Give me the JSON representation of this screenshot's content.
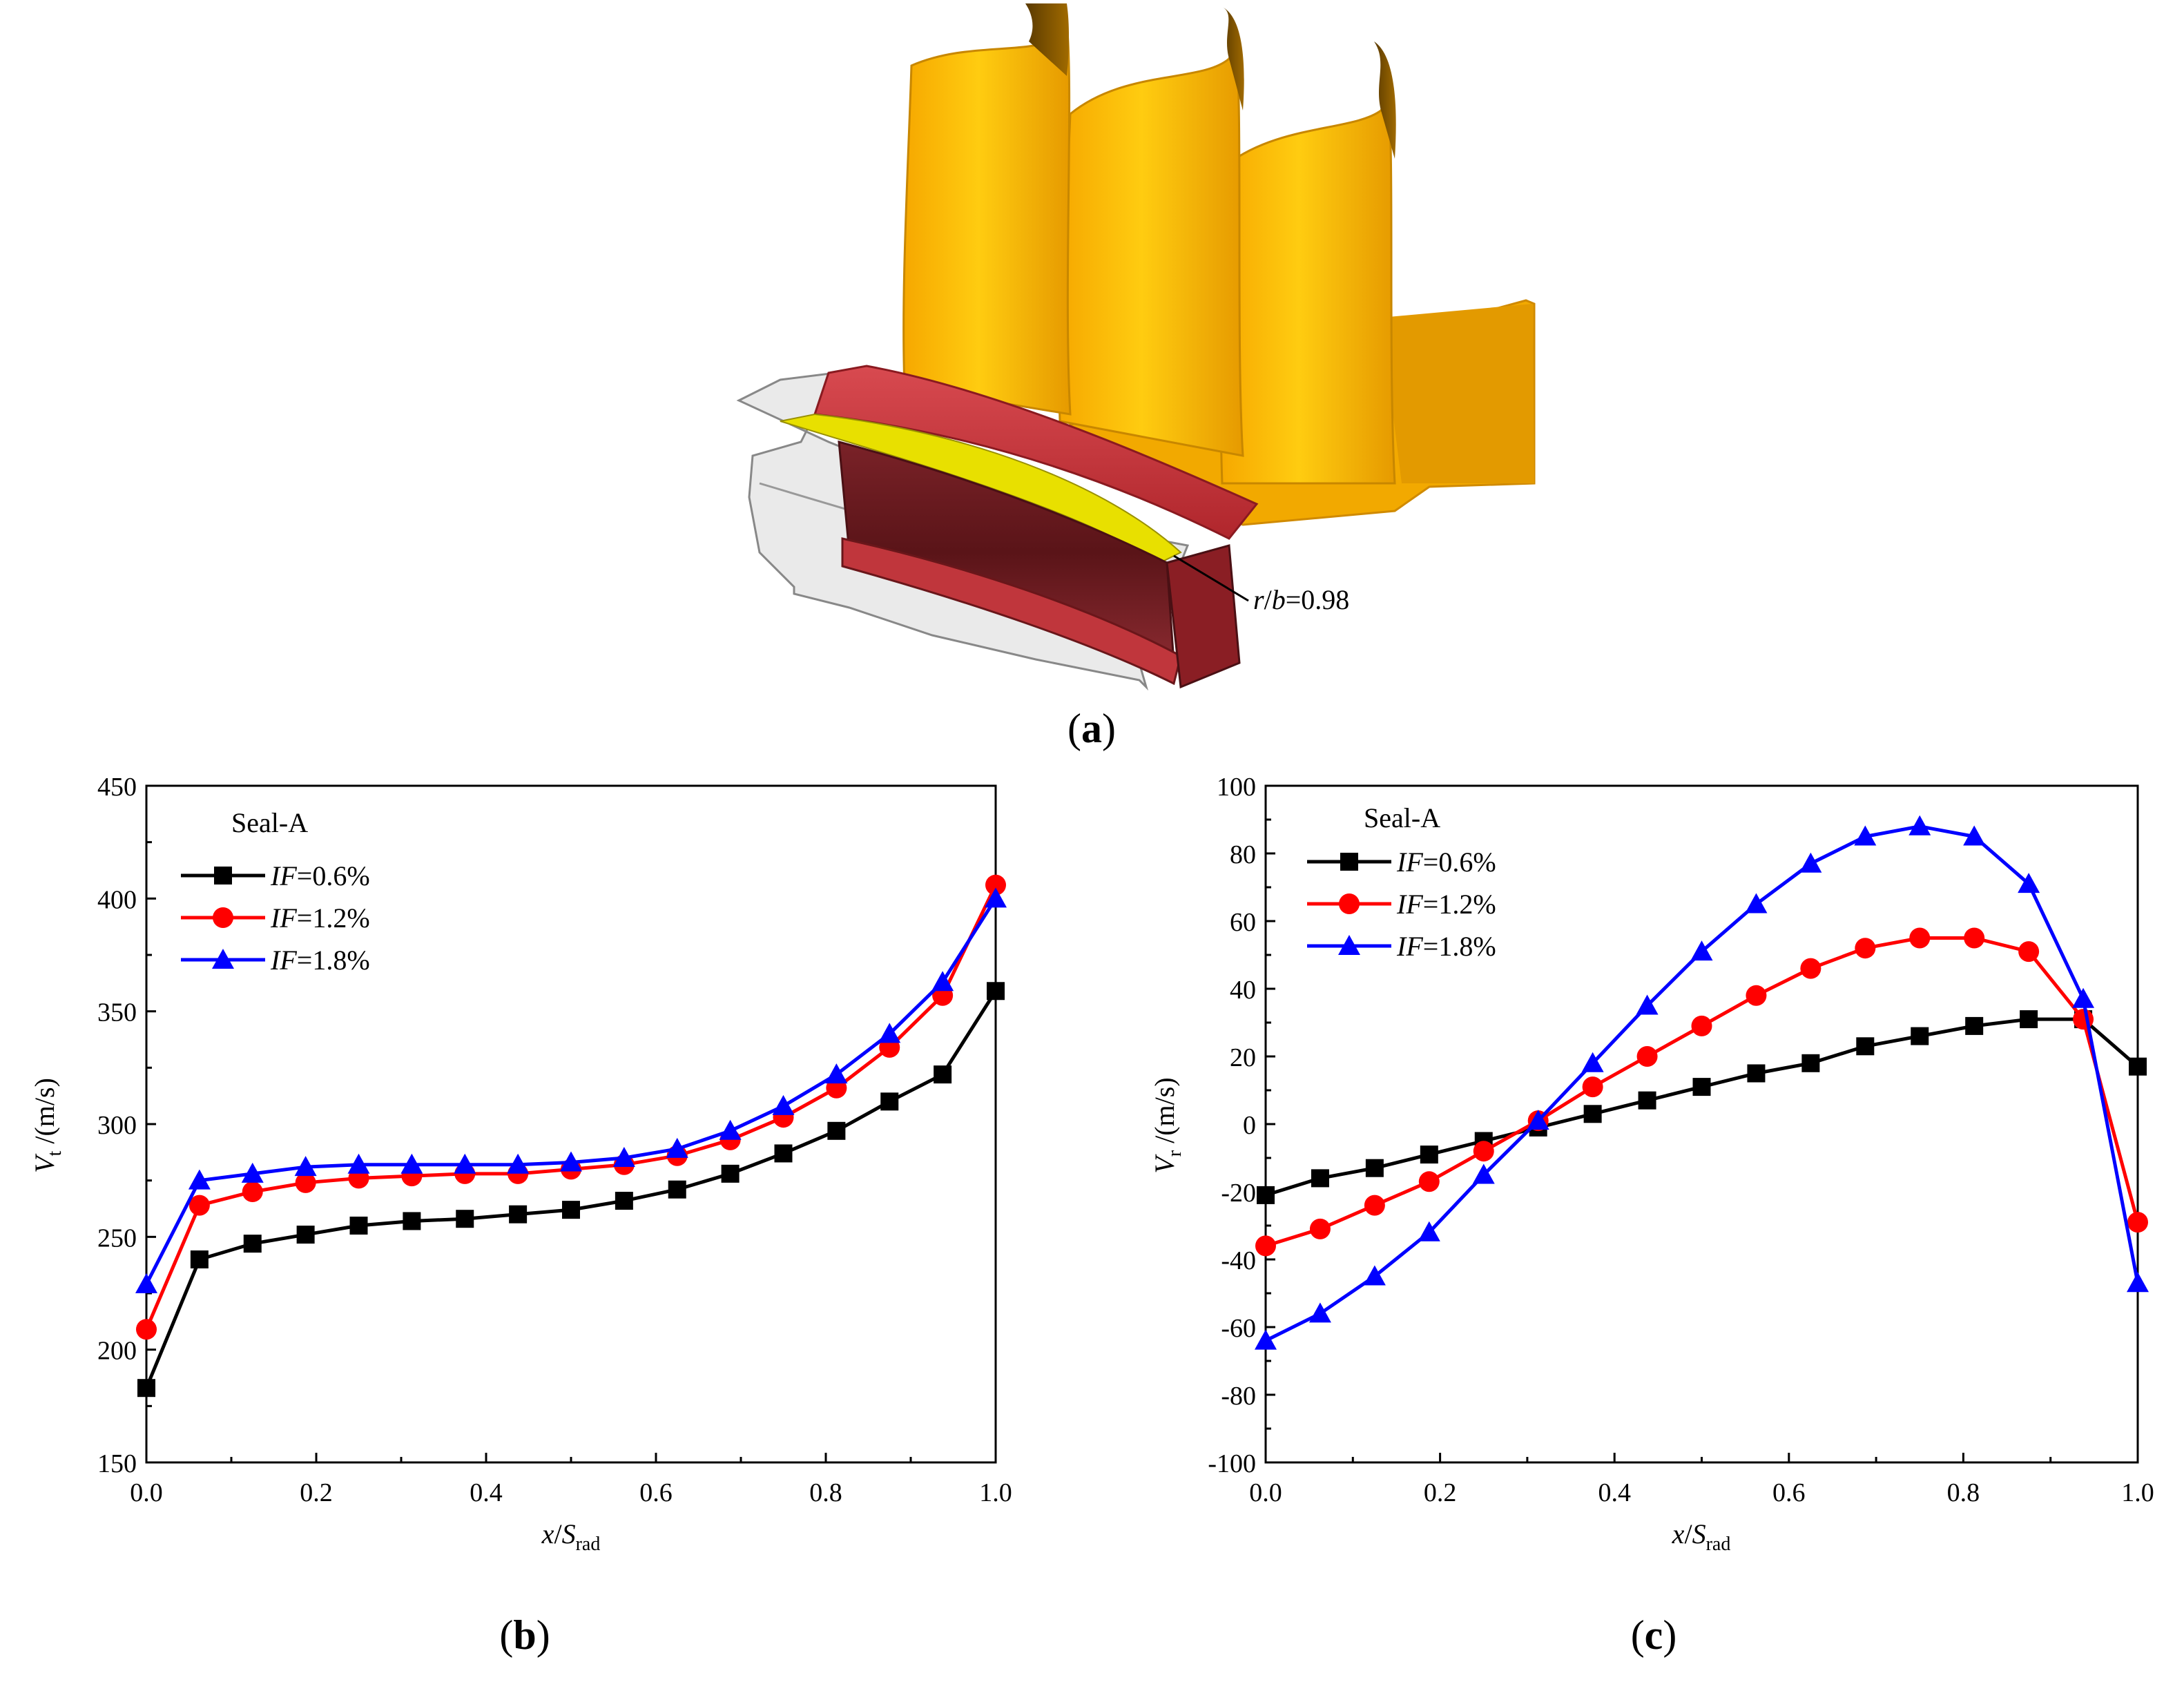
{
  "figure": {
    "panel_a": {
      "label_open": "(",
      "label_letter": "a",
      "label_close": ")",
      "annotation_r": "r",
      "annotation_b": "b",
      "annotation_value": "=0.98"
    },
    "panel_b": {
      "label_open": "(",
      "label_letter": "b",
      "label_close": ")"
    },
    "panel_c": {
      "label_open": "(",
      "label_letter": "c",
      "label_close": ")"
    }
  },
  "colors": {
    "black_series": "#000000",
    "red_series": "#ff0000",
    "blue_series": "#0000ff",
    "blade": "#ffbd00",
    "seal_red": "#c8373c",
    "seal_yellow": "#e8e000"
  },
  "chart_data": [
    {
      "id": "b",
      "type": "line",
      "legend_title": "Seal-A",
      "legend_position": "top-left",
      "xlabel_main": "x",
      "xlabel_sep": "/",
      "xlabel_var": "S",
      "xlabel_sub": "rad",
      "ylabel_main": "V",
      "ylabel_sub": "t",
      "ylabel_unit": " /(m/s)",
      "xlim": [
        0.0,
        1.0
      ],
      "ylim": [
        150,
        450
      ],
      "xticks": [
        "0.0",
        "0.2",
        "0.4",
        "0.6",
        "0.8",
        "1.0"
      ],
      "yticks": [
        "150",
        "200",
        "250",
        "300",
        "350",
        "400",
        "450"
      ],
      "x": [
        0,
        0.0625,
        0.125,
        0.1875,
        0.25,
        0.3125,
        0.375,
        0.4375,
        0.5,
        0.5625,
        0.625,
        0.6875,
        0.75,
        0.8125,
        0.875,
        0.9375,
        1.0
      ],
      "series": [
        {
          "name_var": "IF",
          "name_val": "=0.6%",
          "color": "#000000",
          "marker": "square",
          "values": [
            183,
            240,
            247,
            251,
            255,
            257,
            258,
            260,
            262,
            266,
            271,
            278,
            287,
            297,
            310,
            322,
            359
          ]
        },
        {
          "name_var": "IF",
          "name_val": "=1.2%",
          "color": "#ff0000",
          "marker": "circle",
          "values": [
            209,
            264,
            270,
            274,
            276,
            277,
            278,
            278,
            280,
            282,
            286,
            293,
            303,
            316,
            334,
            357,
            406
          ]
        },
        {
          "name_var": "IF",
          "name_val": "=1.8%",
          "color": "#0000ff",
          "marker": "triangle",
          "values": [
            229,
            275,
            278,
            281,
            282,
            282,
            282,
            282,
            283,
            285,
            289,
            297,
            308,
            322,
            340,
            363,
            400
          ]
        }
      ]
    },
    {
      "id": "c",
      "type": "line",
      "legend_title": "Seal-A",
      "legend_position": "top-left",
      "xlabel_main": "x",
      "xlabel_sep": "/",
      "xlabel_var": "S",
      "xlabel_sub": "rad",
      "ylabel_main": "V",
      "ylabel_sub": "r",
      "ylabel_unit": " /(m/s)",
      "xlim": [
        0.0,
        1.0
      ],
      "ylim": [
        -100,
        100
      ],
      "xticks": [
        "0.0",
        "0.2",
        "0.4",
        "0.6",
        "0.8",
        "1.0"
      ],
      "yticks": [
        "-100",
        "-80",
        "-60",
        "-40",
        "-20",
        "0",
        "20",
        "40",
        "60",
        "80",
        "100"
      ],
      "x": [
        0,
        0.0625,
        0.125,
        0.1875,
        0.25,
        0.3125,
        0.375,
        0.4375,
        0.5,
        0.5625,
        0.625,
        0.6875,
        0.75,
        0.8125,
        0.875,
        0.9375,
        1.0
      ],
      "series": [
        {
          "name_var": "IF",
          "name_val": "=0.6%",
          "color": "#000000",
          "marker": "square",
          "values": [
            -21,
            -16,
            -13,
            -9,
            -5,
            -1,
            3,
            7,
            11,
            15,
            18,
            23,
            26,
            29,
            31,
            31,
            17
          ]
        },
        {
          "name_var": "IF",
          "name_val": "=1.2%",
          "color": "#ff0000",
          "marker": "circle",
          "values": [
            -36,
            -31,
            -24,
            -17,
            -8,
            1,
            11,
            20,
            29,
            38,
            46,
            52,
            55,
            55,
            51,
            31,
            -29
          ]
        },
        {
          "name_var": "IF",
          "name_val": "=1.8%",
          "color": "#0000ff",
          "marker": "triangle",
          "values": [
            -64,
            -56,
            -45,
            -32,
            -15,
            1,
            18,
            35,
            51,
            65,
            77,
            85,
            88,
            85,
            71,
            37,
            -47
          ]
        }
      ]
    }
  ]
}
